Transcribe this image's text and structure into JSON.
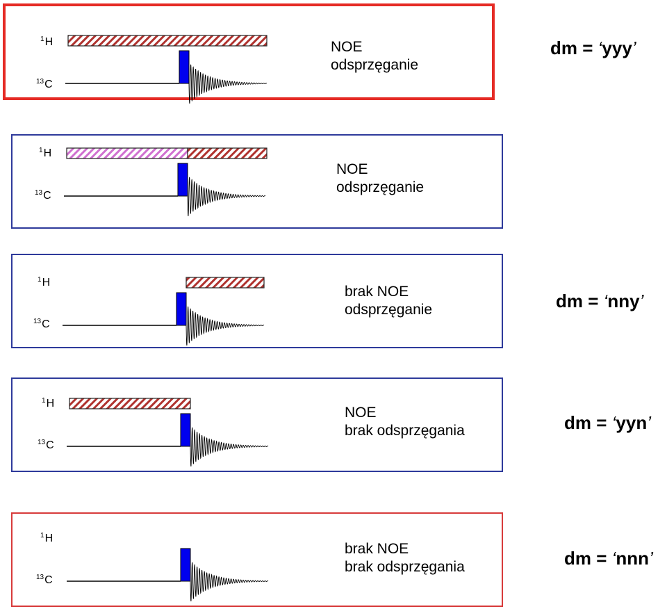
{
  "nuclei": {
    "h": {
      "mass": "1",
      "symbol": "H"
    },
    "c": {
      "mass": "13",
      "symbol": "C"
    }
  },
  "colors": {
    "highlight_border": "#e52b25",
    "normal_border": "#2e3a9b",
    "bottom_border": "#d83b3b",
    "pulse": "#0000ee",
    "decouple_hatch": "#b0322e",
    "noe_hatch": "#d070d0"
  },
  "panels": [
    {
      "line1": "NOE",
      "line2": "odsprzęganie",
      "dm": "yyy",
      "decoupling": "full",
      "noe": true,
      "highlighted": true
    },
    {
      "line1": "NOE",
      "line2": "odsprzęganie",
      "dm": "",
      "decoupling": "acquisition",
      "noe": true,
      "highlighted": false
    },
    {
      "line1": "brak NOE",
      "line2": "odsprzęganie",
      "dm": "nny",
      "decoupling": "acquisition",
      "noe": false,
      "highlighted": false
    },
    {
      "line1": "NOE",
      "line2": "brak odsprzęgania",
      "dm": "yyn",
      "decoupling": "before_pulse",
      "noe": true,
      "highlighted": false
    },
    {
      "line1": "brak NOE",
      "line2": "brak odsprzęgania",
      "dm": "nnn",
      "decoupling": "none",
      "noe": false,
      "highlighted": false
    }
  ],
  "dm_prefix": "dm = "
}
